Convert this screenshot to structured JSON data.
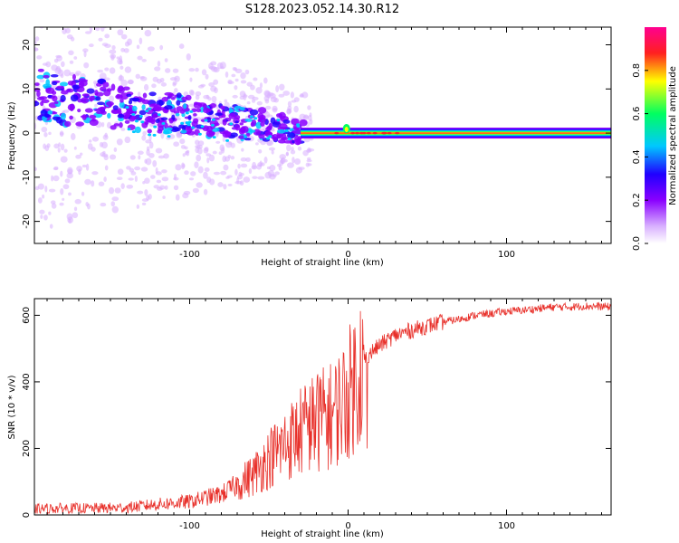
{
  "title": "S128.2023.052.14.30.R12",
  "chart_data": [
    {
      "type": "heatmap",
      "xlabel": "Height of straight line (km)",
      "ylabel": "Frequency (Hz)",
      "xlim": [
        -198,
        166
      ],
      "ylim": [
        -25,
        24
      ],
      "xticks": [
        -100,
        0,
        100
      ],
      "yticks": [
        -20,
        -10,
        0,
        10,
        20
      ],
      "grid": false,
      "colorbar": {
        "label": "Normalized spectral amplitude",
        "range": [
          0,
          1
        ],
        "ticks": [
          0.0,
          0.2,
          0.4,
          0.6,
          0.8
        ],
        "tick_labels": [
          "0.0",
          "0.2",
          "0.4",
          "0.6",
          "0.8"
        ],
        "colormap": [
          "#ffffff",
          "#d8b0ff",
          "#8a00ff",
          "#2000ff",
          "#00c8ff",
          "#00ff60",
          "#ffff00",
          "#ff2020",
          "#ff0090"
        ]
      },
      "features": [
        {
          "x_range": [
            -198,
            -30
          ],
          "description": "scattered broadband power with central frequency decreasing toward 0 Hz"
        },
        {
          "x_range": [
            -30,
            166
          ],
          "center_frequency": 0,
          "description": "narrow high-amplitude tone near 0 Hz"
        }
      ]
    },
    {
      "type": "line",
      "xlabel": "Height of straight line (km)",
      "ylabel": "SNR (10 * v/v)",
      "xlim": [
        -198,
        166
      ],
      "ylim": [
        0,
        650
      ],
      "xticks": [
        -100,
        0,
        100
      ],
      "yticks": [
        0,
        200,
        400,
        600
      ],
      "grid": false,
      "series": [
        {
          "color": "#e8302a",
          "x": [
            -198,
            -180,
            -160,
            -140,
            -120,
            -100,
            -90,
            -80,
            -70,
            -60,
            -50,
            -40,
            -30,
            -20,
            -10,
            0,
            10,
            20,
            30,
            40,
            50,
            60,
            70,
            80,
            90,
            100,
            110,
            120,
            130,
            140,
            150,
            166
          ],
          "y": [
            18,
            20,
            20,
            22,
            32,
            40,
            52,
            62,
            90,
            120,
            170,
            210,
            250,
            280,
            300,
            360,
            470,
            510,
            540,
            555,
            568,
            580,
            588,
            600,
            605,
            612,
            615,
            620,
            625,
            625,
            628,
            625
          ]
        }
      ]
    }
  ]
}
